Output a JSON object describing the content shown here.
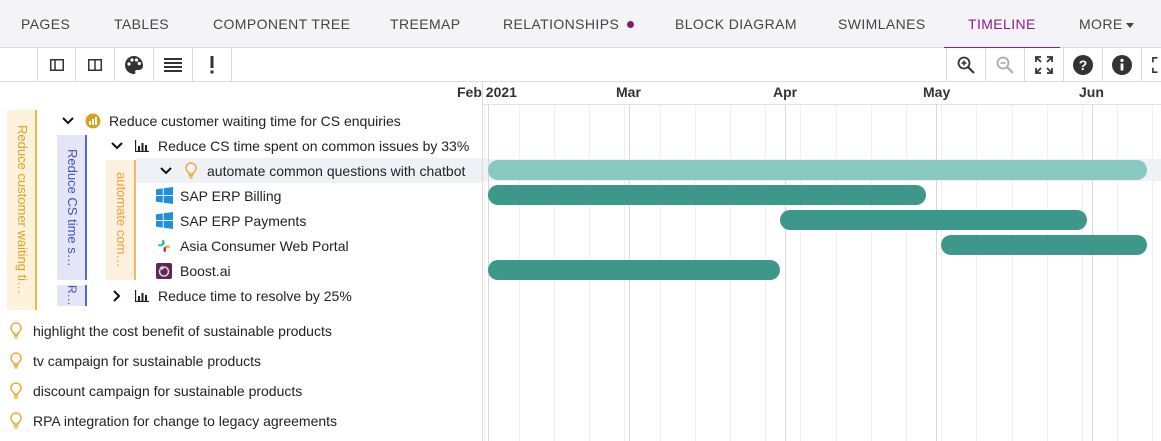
{
  "tabs": [
    {
      "label": "PAGES"
    },
    {
      "label": "TABLES"
    },
    {
      "label": "COMPONENT TREE"
    },
    {
      "label": "TREEMAP"
    },
    {
      "label": "RELATIONSHIPS"
    },
    {
      "label": "BLOCK DIAGRAM"
    },
    {
      "label": "SWIMLANES"
    },
    {
      "label": "TIMELINE",
      "active": true
    },
    {
      "label": "MORE"
    }
  ],
  "toolbar": {
    "left_icons": [
      "split-panel-icon",
      "split-panel-right-icon",
      "palette-icon",
      "list-icon",
      "exclamation-icon"
    ],
    "right_icons": [
      "zoom-in-icon",
      "zoom-out-icon",
      "fullscreen-icon",
      "help-icon",
      "info-icon",
      "expand-icon"
    ]
  },
  "bands": {
    "yellow": "Reduce customer waiting ti…",
    "blue1": "Reduce CS time s…",
    "blue2": "R…",
    "orange": "automate com…"
  },
  "tree": [
    {
      "label": "Reduce customer waiting time for CS enquiries",
      "icon": "coins-icon"
    },
    {
      "label": "Reduce CS time spent on common issues by 33%",
      "icon": "bar-chart-icon"
    },
    {
      "label": "automate common questions with chatbot",
      "icon": "lightbulb-icon"
    },
    {
      "label": "SAP ERP Billing",
      "icon": "windows-icon"
    },
    {
      "label": "SAP ERP Payments",
      "icon": "windows-icon"
    },
    {
      "label": "Asia Consumer Web Portal",
      "icon": "slack-icon"
    },
    {
      "label": "Boost.ai",
      "icon": "boost-icon"
    },
    {
      "label": "Reduce time to resolve by 25%",
      "icon": "bar-chart-icon"
    }
  ],
  "ideas": [
    {
      "label": "highlight the cost benefit of sustainable products",
      "icon": "lightbulb-icon"
    },
    {
      "label": "tv campaign for sustainable products",
      "icon": "lightbulb-icon"
    },
    {
      "label": "discount campaign for sustainable products",
      "icon": "lightbulb-icon"
    },
    {
      "label": "RPA integration for change to legacy agreements",
      "icon": "lightbulb-icon"
    }
  ],
  "timeline": {
    "months": [
      "Feb 2021",
      "Mar",
      "Apr",
      "May",
      "Jun"
    ],
    "bars": [
      {
        "row": "automate common questions with chatbot",
        "start": "2021-02-01",
        "end": "2021-06-12",
        "color": "#88c9c2"
      },
      {
        "row": "SAP ERP Billing",
        "start": "2021-02-01",
        "end": "2021-04-29",
        "color": "#3e978b"
      },
      {
        "row": "SAP ERP Payments",
        "start": "2021-03-31",
        "end": "2021-05-31",
        "color": "#3e978b"
      },
      {
        "row": "Asia Consumer Web Portal",
        "start": "2021-05-02",
        "end": "2021-06-12",
        "color": "#3e978b"
      },
      {
        "row": "Boost.ai",
        "start": "2021-02-01",
        "end": "2021-03-31",
        "color": "#3e978b"
      }
    ]
  },
  "colors": {
    "accent": "#8d1b8f",
    "bar_dark": "#3e978b",
    "bar_light": "#88c9c2"
  }
}
